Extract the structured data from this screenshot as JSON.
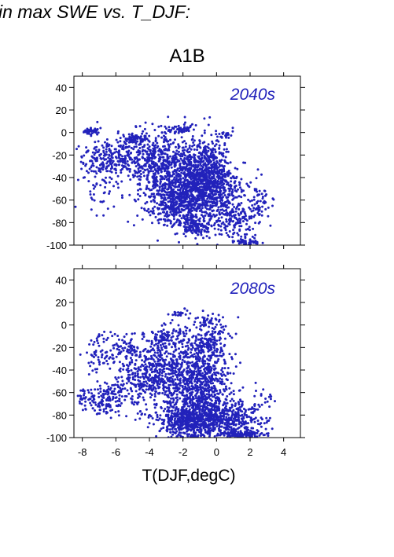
{
  "header": {
    "text": "in max SWE vs. T_DJF:"
  },
  "scenario_title": "A1B",
  "xlabel": "T(DJF,degC)",
  "colors": {
    "points": "#2222bb",
    "period_label": "#2222bb",
    "frame": "#000000"
  },
  "chart_data": [
    {
      "type": "scatter",
      "panel_label": "2040s",
      "xlim": [
        -8.5,
        5
      ],
      "ylim": [
        -100,
        50
      ],
      "yticks": [
        40,
        20,
        0,
        -20,
        -40,
        -60,
        -80,
        -100
      ],
      "xticks": [
        -8,
        -6,
        -4,
        -2,
        0,
        2,
        4
      ],
      "show_x_tick_labels": false,
      "grid": false,
      "point_clusters": [
        {
          "x": -7.4,
          "y": 1,
          "sx": 0.25,
          "sy": 1.5,
          "n": 40
        },
        {
          "x": -4.8,
          "y": -6,
          "sx": 0.35,
          "sy": 2,
          "n": 60
        },
        {
          "x": -2.3,
          "y": 3,
          "sx": 0.5,
          "sy": 2,
          "n": 50
        },
        {
          "x": 0.6,
          "y": -2,
          "sx": 0.25,
          "sy": 2,
          "n": 20
        },
        {
          "x": -7.0,
          "y": -25,
          "sx": 0.5,
          "sy": 9,
          "n": 130
        },
        {
          "x": -5.5,
          "y": -22,
          "sx": 0.6,
          "sy": 9,
          "n": 170
        },
        {
          "x": -3.5,
          "y": -30,
          "sx": 0.8,
          "sy": 14,
          "n": 400
        },
        {
          "x": -1.5,
          "y": -40,
          "sx": 0.9,
          "sy": 18,
          "n": 700
        },
        {
          "x": -0.3,
          "y": -45,
          "sx": 0.8,
          "sy": 18,
          "n": 650
        },
        {
          "x": -2.5,
          "y": -62,
          "sx": 0.9,
          "sy": 10,
          "n": 350
        },
        {
          "x": -1.3,
          "y": -82,
          "sx": 0.6,
          "sy": 5,
          "n": 120
        },
        {
          "x": 1.2,
          "y": -75,
          "sx": 0.6,
          "sy": 10,
          "n": 150
        },
        {
          "x": 2.6,
          "y": -60,
          "sx": 0.4,
          "sy": 10,
          "n": 60
        },
        {
          "x": 1.8,
          "y": -97,
          "sx": 0.5,
          "sy": 2,
          "n": 40
        },
        {
          "x": -6.5,
          "y": -55,
          "sx": 0.8,
          "sy": 12,
          "n": 30
        }
      ]
    },
    {
      "type": "scatter",
      "panel_label": "2080s",
      "xlim": [
        -8.5,
        5
      ],
      "ylim": [
        -100,
        50
      ],
      "yticks": [
        40,
        20,
        0,
        -20,
        -40,
        -60,
        -80,
        -100
      ],
      "xticks": [
        -8,
        -6,
        -4,
        -2,
        0,
        2,
        4
      ],
      "show_x_tick_labels": true,
      "grid": false,
      "point_clusters": [
        {
          "x": -2.3,
          "y": 11,
          "sx": 0.3,
          "sy": 1.5,
          "n": 20
        },
        {
          "x": -0.5,
          "y": 5,
          "sx": 0.6,
          "sy": 3,
          "n": 40
        },
        {
          "x": -7.0,
          "y": -25,
          "sx": 0.4,
          "sy": 8,
          "n": 60
        },
        {
          "x": -5.5,
          "y": -20,
          "sx": 0.5,
          "sy": 7,
          "n": 60
        },
        {
          "x": -4.5,
          "y": -45,
          "sx": 0.8,
          "sy": 14,
          "n": 250
        },
        {
          "x": -2.8,
          "y": -45,
          "sx": 0.9,
          "sy": 18,
          "n": 400
        },
        {
          "x": -1.0,
          "y": -50,
          "sx": 0.9,
          "sy": 20,
          "n": 700
        },
        {
          "x": -6.5,
          "y": -65,
          "sx": 0.6,
          "sy": 8,
          "n": 150
        },
        {
          "x": -1.5,
          "y": -85,
          "sx": 1.0,
          "sy": 7,
          "n": 600
        },
        {
          "x": 0.8,
          "y": -82,
          "sx": 0.8,
          "sy": 9,
          "n": 250
        },
        {
          "x": 1.5,
          "y": -97,
          "sx": 0.7,
          "sy": 2,
          "n": 120
        },
        {
          "x": 2.2,
          "y": -75,
          "sx": 0.5,
          "sy": 10,
          "n": 60
        },
        {
          "x": -3.0,
          "y": -10,
          "sx": 0.6,
          "sy": 5,
          "n": 80
        },
        {
          "x": -0.5,
          "y": -15,
          "sx": 0.6,
          "sy": 8,
          "n": 120
        },
        {
          "x": -7.8,
          "y": -65,
          "sx": 0.3,
          "sy": 6,
          "n": 30
        }
      ]
    }
  ]
}
